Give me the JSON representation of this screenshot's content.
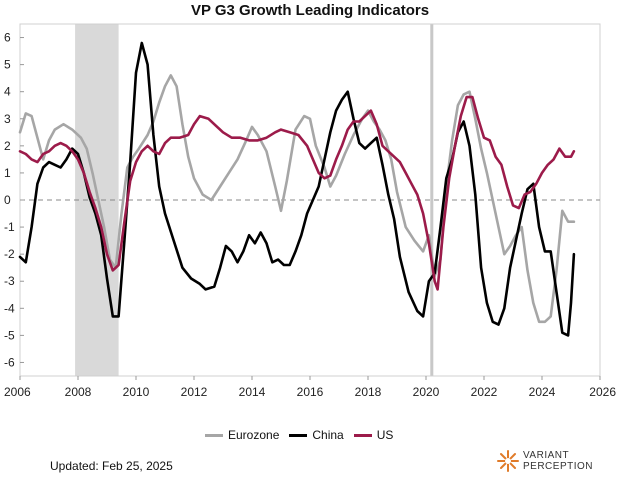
{
  "chart_data": {
    "type": "line",
    "title": "VP G3 Growth Leading Indicators",
    "xlim": [
      2006,
      2026
    ],
    "ylim": [
      -6.5,
      6.5
    ],
    "xticks": [
      "2006",
      "2008",
      "2010",
      "2012",
      "2014",
      "2016",
      "2018",
      "2020",
      "2022",
      "2024",
      "2026"
    ],
    "yticks": [
      "6",
      "5",
      "4",
      "3",
      "2",
      "1",
      "0",
      "-1",
      "-2",
      "-3",
      "-4",
      "-5",
      "-6"
    ],
    "zero_line": "dashed",
    "grid": false,
    "legend": "bottom",
    "shaded_periods": [
      {
        "start": 2007.9,
        "end": 2009.4
      }
    ],
    "vertical_markers": [
      2020.2
    ],
    "series": [
      {
        "name": "Eurozone",
        "color": "#a6a6a6",
        "points": [
          [
            2006.0,
            2.5
          ],
          [
            2006.2,
            3.2
          ],
          [
            2006.4,
            3.1
          ],
          [
            2006.6,
            2.3
          ],
          [
            2006.8,
            1.5
          ],
          [
            2007.0,
            2.2
          ],
          [
            2007.2,
            2.6
          ],
          [
            2007.5,
            2.8
          ],
          [
            2007.8,
            2.6
          ],
          [
            2008.1,
            2.3
          ],
          [
            2008.3,
            1.9
          ],
          [
            2008.5,
            1.0
          ],
          [
            2008.7,
            0.0
          ],
          [
            2008.9,
            -1.0
          ],
          [
            2009.1,
            -2.2
          ],
          [
            2009.3,
            -2.5
          ],
          [
            2009.5,
            -0.5
          ],
          [
            2009.7,
            1.2
          ],
          [
            2009.9,
            1.6
          ],
          [
            2010.1,
            1.9
          ],
          [
            2010.4,
            2.4
          ],
          [
            2010.6,
            2.9
          ],
          [
            2010.8,
            3.6
          ],
          [
            2011.0,
            4.2
          ],
          [
            2011.2,
            4.6
          ],
          [
            2011.4,
            4.2
          ],
          [
            2011.6,
            2.8
          ],
          [
            2011.8,
            1.6
          ],
          [
            2012.0,
            0.8
          ],
          [
            2012.3,
            0.2
          ],
          [
            2012.6,
            0.0
          ],
          [
            2012.9,
            0.5
          ],
          [
            2013.2,
            1.0
          ],
          [
            2013.5,
            1.5
          ],
          [
            2013.8,
            2.2
          ],
          [
            2014.0,
            2.7
          ],
          [
            2014.2,
            2.4
          ],
          [
            2014.5,
            1.8
          ],
          [
            2014.8,
            0.5
          ],
          [
            2015.0,
            -0.4
          ],
          [
            2015.2,
            0.7
          ],
          [
            2015.5,
            2.6
          ],
          [
            2015.8,
            3.1
          ],
          [
            2016.0,
            3.0
          ],
          [
            2016.2,
            2.0
          ],
          [
            2016.5,
            1.2
          ],
          [
            2016.7,
            0.5
          ],
          [
            2016.9,
            0.9
          ],
          [
            2017.2,
            1.7
          ],
          [
            2017.5,
            2.4
          ],
          [
            2017.8,
            3.0
          ],
          [
            2018.0,
            3.3
          ],
          [
            2018.2,
            2.9
          ],
          [
            2018.4,
            2.6
          ],
          [
            2018.6,
            2.2
          ],
          [
            2018.8,
            1.5
          ],
          [
            2019.0,
            0.3
          ],
          [
            2019.3,
            -1.0
          ],
          [
            2019.6,
            -1.5
          ],
          [
            2019.9,
            -1.9
          ],
          [
            2020.1,
            -1.3
          ],
          [
            2020.3,
            -2.8
          ],
          [
            2020.5,
            -2.2
          ],
          [
            2020.7,
            0.5
          ],
          [
            2020.9,
            2.2
          ],
          [
            2021.1,
            3.5
          ],
          [
            2021.3,
            3.9
          ],
          [
            2021.5,
            4.0
          ],
          [
            2021.7,
            3.0
          ],
          [
            2021.9,
            1.9
          ],
          [
            2022.1,
            1.0
          ],
          [
            2022.3,
            0.0
          ],
          [
            2022.5,
            -1.0
          ],
          [
            2022.7,
            -2.0
          ],
          [
            2022.9,
            -1.7
          ],
          [
            2023.1,
            -1.3
          ],
          [
            2023.3,
            -1.0
          ],
          [
            2023.5,
            -2.6
          ],
          [
            2023.7,
            -3.8
          ],
          [
            2023.9,
            -4.5
          ],
          [
            2024.1,
            -4.5
          ],
          [
            2024.3,
            -4.3
          ],
          [
            2024.5,
            -2.6
          ],
          [
            2024.7,
            -0.4
          ],
          [
            2024.9,
            -0.8
          ],
          [
            2025.1,
            -0.8
          ]
        ]
      },
      {
        "name": "China",
        "color": "#000000",
        "points": [
          [
            2006.0,
            -2.1
          ],
          [
            2006.2,
            -2.3
          ],
          [
            2006.4,
            -1.0
          ],
          [
            2006.6,
            0.6
          ],
          [
            2006.8,
            1.2
          ],
          [
            2007.0,
            1.4
          ],
          [
            2007.2,
            1.3
          ],
          [
            2007.4,
            1.2
          ],
          [
            2007.6,
            1.5
          ],
          [
            2007.8,
            1.9
          ],
          [
            2008.0,
            1.7
          ],
          [
            2008.2,
            1.0
          ],
          [
            2008.4,
            0.1
          ],
          [
            2008.6,
            -0.5
          ],
          [
            2008.8,
            -1.3
          ],
          [
            2009.0,
            -2.9
          ],
          [
            2009.2,
            -4.3
          ],
          [
            2009.4,
            -4.3
          ],
          [
            2009.6,
            -1.5
          ],
          [
            2009.8,
            1.4
          ],
          [
            2010.0,
            4.7
          ],
          [
            2010.2,
            5.8
          ],
          [
            2010.4,
            5.0
          ],
          [
            2010.6,
            2.4
          ],
          [
            2010.8,
            0.5
          ],
          [
            2011.0,
            -0.5
          ],
          [
            2011.3,
            -1.5
          ],
          [
            2011.6,
            -2.5
          ],
          [
            2011.9,
            -2.9
          ],
          [
            2012.2,
            -3.1
          ],
          [
            2012.4,
            -3.3
          ],
          [
            2012.7,
            -3.2
          ],
          [
            2012.9,
            -2.5
          ],
          [
            2013.1,
            -1.7
          ],
          [
            2013.3,
            -1.9
          ],
          [
            2013.5,
            -2.3
          ],
          [
            2013.7,
            -1.9
          ],
          [
            2013.9,
            -1.3
          ],
          [
            2014.1,
            -1.6
          ],
          [
            2014.3,
            -1.2
          ],
          [
            2014.5,
            -1.6
          ],
          [
            2014.7,
            -2.3
          ],
          [
            2014.9,
            -2.2
          ],
          [
            2015.1,
            -2.4
          ],
          [
            2015.3,
            -2.4
          ],
          [
            2015.5,
            -1.9
          ],
          [
            2015.7,
            -1.3
          ],
          [
            2015.9,
            -0.5
          ],
          [
            2016.1,
            0.0
          ],
          [
            2016.3,
            0.5
          ],
          [
            2016.5,
            1.5
          ],
          [
            2016.7,
            2.5
          ],
          [
            2016.9,
            3.3
          ],
          [
            2017.1,
            3.7
          ],
          [
            2017.3,
            4.0
          ],
          [
            2017.5,
            3.0
          ],
          [
            2017.7,
            2.1
          ],
          [
            2017.9,
            1.9
          ],
          [
            2018.1,
            2.1
          ],
          [
            2018.3,
            2.3
          ],
          [
            2018.5,
            1.3
          ],
          [
            2018.7,
            0.2
          ],
          [
            2018.9,
            -0.7
          ],
          [
            2019.1,
            -2.1
          ],
          [
            2019.4,
            -3.4
          ],
          [
            2019.7,
            -4.1
          ],
          [
            2019.9,
            -4.3
          ],
          [
            2020.1,
            -3.0
          ],
          [
            2020.3,
            -2.7
          ],
          [
            2020.5,
            -1.0
          ],
          [
            2020.7,
            0.8
          ],
          [
            2020.9,
            1.5
          ],
          [
            2021.1,
            2.5
          ],
          [
            2021.3,
            2.9
          ],
          [
            2021.5,
            2.0
          ],
          [
            2021.7,
            0.2
          ],
          [
            2021.9,
            -2.5
          ],
          [
            2022.1,
            -3.8
          ],
          [
            2022.3,
            -4.5
          ],
          [
            2022.5,
            -4.6
          ],
          [
            2022.7,
            -4.0
          ],
          [
            2022.9,
            -2.5
          ],
          [
            2023.1,
            -1.5
          ],
          [
            2023.3,
            -0.5
          ],
          [
            2023.5,
            0.4
          ],
          [
            2023.7,
            0.6
          ],
          [
            2023.9,
            -1.0
          ],
          [
            2024.1,
            -1.9
          ],
          [
            2024.3,
            -1.9
          ],
          [
            2024.5,
            -3.4
          ],
          [
            2024.7,
            -4.9
          ],
          [
            2024.9,
            -5.0
          ],
          [
            2025.0,
            -3.8
          ],
          [
            2025.1,
            -2.0
          ]
        ]
      },
      {
        "name": "US",
        "color": "#9c1b4a",
        "points": [
          [
            2006.0,
            1.8
          ],
          [
            2006.2,
            1.7
          ],
          [
            2006.4,
            1.5
          ],
          [
            2006.6,
            1.4
          ],
          [
            2006.8,
            1.7
          ],
          [
            2007.0,
            1.8
          ],
          [
            2007.2,
            2.0
          ],
          [
            2007.4,
            2.1
          ],
          [
            2007.6,
            2.0
          ],
          [
            2007.8,
            1.8
          ],
          [
            2008.0,
            1.5
          ],
          [
            2008.2,
            1.0
          ],
          [
            2008.4,
            0.3
          ],
          [
            2008.6,
            -0.3
          ],
          [
            2008.8,
            -1.0
          ],
          [
            2009.0,
            -2.0
          ],
          [
            2009.2,
            -2.6
          ],
          [
            2009.4,
            -2.4
          ],
          [
            2009.6,
            -0.8
          ],
          [
            2009.8,
            0.7
          ],
          [
            2010.0,
            1.4
          ],
          [
            2010.2,
            1.8
          ],
          [
            2010.4,
            2.0
          ],
          [
            2010.6,
            1.8
          ],
          [
            2010.8,
            1.7
          ],
          [
            2011.0,
            2.1
          ],
          [
            2011.2,
            2.3
          ],
          [
            2011.5,
            2.3
          ],
          [
            2011.8,
            2.4
          ],
          [
            2012.0,
            2.8
          ],
          [
            2012.2,
            3.1
          ],
          [
            2012.5,
            3.0
          ],
          [
            2012.8,
            2.7
          ],
          [
            2013.0,
            2.5
          ],
          [
            2013.3,
            2.3
          ],
          [
            2013.6,
            2.3
          ],
          [
            2013.9,
            2.2
          ],
          [
            2014.2,
            2.2
          ],
          [
            2014.5,
            2.3
          ],
          [
            2014.8,
            2.5
          ],
          [
            2015.0,
            2.6
          ],
          [
            2015.3,
            2.5
          ],
          [
            2015.6,
            2.4
          ],
          [
            2015.9,
            2.0
          ],
          [
            2016.1,
            1.5
          ],
          [
            2016.3,
            1.0
          ],
          [
            2016.5,
            0.8
          ],
          [
            2016.7,
            0.9
          ],
          [
            2016.9,
            1.5
          ],
          [
            2017.1,
            2.0
          ],
          [
            2017.3,
            2.6
          ],
          [
            2017.5,
            2.9
          ],
          [
            2017.7,
            2.9
          ],
          [
            2017.9,
            3.1
          ],
          [
            2018.1,
            3.3
          ],
          [
            2018.3,
            2.8
          ],
          [
            2018.5,
            2.0
          ],
          [
            2018.7,
            1.8
          ],
          [
            2018.9,
            1.6
          ],
          [
            2019.1,
            1.4
          ],
          [
            2019.3,
            1.0
          ],
          [
            2019.5,
            0.6
          ],
          [
            2019.7,
            0.2
          ],
          [
            2019.9,
            -0.5
          ],
          [
            2020.1,
            -1.6
          ],
          [
            2020.3,
            -3.0
          ],
          [
            2020.4,
            -3.3
          ],
          [
            2020.6,
            -1.0
          ],
          [
            2020.8,
            0.8
          ],
          [
            2021.0,
            2.0
          ],
          [
            2021.2,
            3.1
          ],
          [
            2021.4,
            3.8
          ],
          [
            2021.6,
            3.8
          ],
          [
            2021.8,
            3.0
          ],
          [
            2022.0,
            2.3
          ],
          [
            2022.2,
            2.2
          ],
          [
            2022.4,
            1.6
          ],
          [
            2022.6,
            1.3
          ],
          [
            2022.8,
            0.5
          ],
          [
            2023.0,
            -0.2
          ],
          [
            2023.2,
            -0.3
          ],
          [
            2023.4,
            0.2
          ],
          [
            2023.6,
            0.3
          ],
          [
            2023.8,
            0.6
          ],
          [
            2024.0,
            1.0
          ],
          [
            2024.2,
            1.3
          ],
          [
            2024.4,
            1.5
          ],
          [
            2024.6,
            1.9
          ],
          [
            2024.8,
            1.6
          ],
          [
            2025.0,
            1.6
          ],
          [
            2025.1,
            1.8
          ]
        ]
      }
    ]
  },
  "legend": {
    "eurozone": "Eurozone",
    "china": "China",
    "us": "US"
  },
  "footer": {
    "updated": "Updated: Feb 25, 2025",
    "brand_line1": "VARIANT",
    "brand_line2": "PERCEPTION"
  },
  "colors": {
    "eurozone": "#a6a6a6",
    "china": "#000000",
    "us": "#9c1b4a",
    "shade": "#d9d9d9",
    "brand": "#e07b2a"
  }
}
